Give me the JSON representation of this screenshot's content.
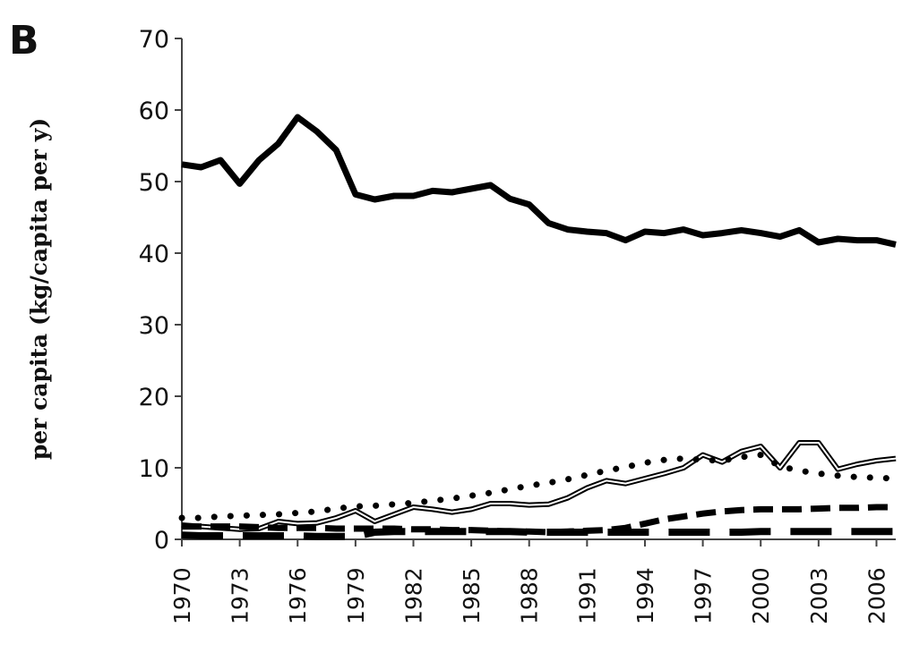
{
  "chart_data": {
    "type": "line",
    "panel_label": "B",
    "title": "",
    "xlabel": "",
    "ylabel": "per capita (kg/capita per y)",
    "ylim": [
      0,
      70
    ],
    "yticks": [
      "0",
      "10",
      "20",
      "30",
      "40",
      "50",
      "60",
      "70"
    ],
    "xlim": [
      1970,
      2007
    ],
    "xticks": [
      "1970",
      "1973",
      "1976",
      "1979",
      "1982",
      "1985",
      "1988",
      "1991",
      "1994",
      "1997",
      "2000",
      "2003",
      "2006"
    ],
    "grid": false,
    "legend": "none",
    "x": [
      1970,
      1971,
      1972,
      1973,
      1974,
      1975,
      1976,
      1977,
      1978,
      1979,
      1980,
      1981,
      1982,
      1983,
      1984,
      1985,
      1986,
      1987,
      1988,
      1989,
      1990,
      1991,
      1992,
      1993,
      1994,
      1995,
      1996,
      1997,
      1998,
      1999,
      2000,
      2001,
      2002,
      2003,
      2004,
      2005,
      2006,
      2007
    ],
    "series": [
      {
        "style": "solid-thick",
        "values": [
          52.4,
          52.0,
          53.0,
          49.7,
          53.0,
          55.3,
          59.0,
          57.0,
          54.4,
          48.2,
          47.5,
          48.0,
          48.0,
          48.7,
          48.5,
          49.0,
          49.5,
          47.6,
          46.8,
          44.2,
          43.3,
          43.0,
          42.8,
          41.8,
          43.0,
          42.8,
          43.3,
          42.5,
          42.8,
          43.2,
          42.8,
          42.3,
          43.2,
          41.5,
          42.0,
          41.8,
          41.8,
          41.2
        ]
      },
      {
        "style": "double-line",
        "values": [
          2.0,
          1.8,
          1.6,
          1.4,
          1.5,
          2.5,
          2.2,
          2.3,
          3.0,
          4.0,
          2.5,
          3.5,
          4.5,
          4.2,
          3.8,
          4.2,
          5.0,
          5.0,
          4.8,
          4.9,
          5.8,
          7.2,
          8.2,
          7.8,
          8.5,
          9.2,
          10.0,
          11.8,
          10.8,
          12.3,
          13.0,
          10.0,
          13.5,
          13.5,
          9.8,
          10.5,
          11.0,
          11.3
        ]
      },
      {
        "style": "dotted",
        "values": [
          3.0,
          3.0,
          3.2,
          3.3,
          3.4,
          3.5,
          3.7,
          3.9,
          4.3,
          4.6,
          4.7,
          4.9,
          5.1,
          5.4,
          5.7,
          6.1,
          6.5,
          7.0,
          7.5,
          7.9,
          8.4,
          9.0,
          9.6,
          10.1,
          10.7,
          11.1,
          11.3,
          11.1,
          11.0,
          11.5,
          11.8,
          10.2,
          9.6,
          9.2,
          8.9,
          8.7,
          8.6,
          8.5
        ]
      },
      {
        "style": "dashed-medium",
        "values": [
          1.8,
          1.8,
          1.8,
          1.8,
          1.7,
          1.6,
          1.6,
          1.6,
          1.5,
          1.5,
          1.5,
          1.5,
          1.4,
          1.4,
          1.3,
          1.3,
          1.2,
          1.1,
          1.1,
          1.0,
          1.1,
          1.2,
          1.3,
          1.6,
          2.2,
          2.8,
          3.2,
          3.6,
          3.9,
          4.1,
          4.2,
          4.2,
          4.2,
          4.3,
          4.4,
          4.4,
          4.5,
          4.5
        ]
      },
      {
        "style": "dashed-long",
        "values": [
          0.6,
          0.5,
          0.5,
          0.5,
          0.5,
          0.5,
          0.5,
          0.4,
          0.4,
          0.4,
          1.0,
          1.1,
          1.1,
          1.1,
          1.1,
          1.1,
          1.1,
          1.1,
          1.0,
          1.0,
          1.0,
          1.0,
          1.0,
          1.0,
          1.0,
          1.0,
          1.0,
          1.0,
          1.0,
          1.0,
          1.1,
          1.1,
          1.1,
          1.1,
          1.1,
          1.1,
          1.1,
          1.1
        ]
      }
    ]
  }
}
